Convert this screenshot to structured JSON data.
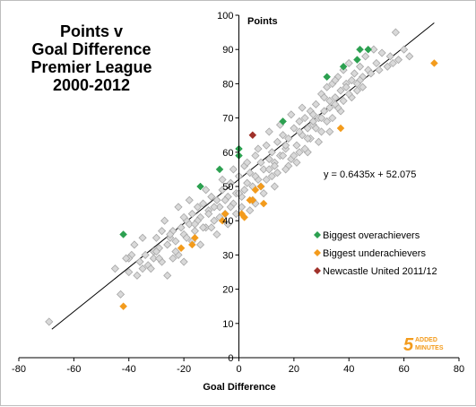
{
  "chart_data": {
    "type": "scatter",
    "title_lines": [
      "Points v",
      "Goal Difference",
      "Premier League",
      "2000-2012"
    ],
    "xlabel": "Goal Difference",
    "ylabel": "Points",
    "xlim": [
      -80,
      80
    ],
    "ylim": [
      0,
      100
    ],
    "xticks": [
      -80,
      -60,
      -40,
      -20,
      0,
      20,
      40,
      60,
      80
    ],
    "yticks": [
      0,
      10,
      20,
      30,
      40,
      50,
      60,
      70,
      80,
      90,
      100
    ],
    "grid": false,
    "trendline": {
      "slope": 0.6435,
      "intercept": 52.075,
      "x_range": [
        -68,
        71
      ],
      "label": "y = 0.6435x + 52.075"
    },
    "legend_position": "right",
    "series": [
      {
        "name": "",
        "color": "#d9d9d9",
        "points": [
          [
            -69,
            10.5
          ],
          [
            -43,
            18.5
          ],
          [
            -40,
            25
          ],
          [
            -39,
            30
          ],
          [
            -38,
            33
          ],
          [
            -40,
            29
          ],
          [
            -36,
            28
          ],
          [
            -35,
            26
          ],
          [
            -33,
            27
          ],
          [
            -31,
            29
          ],
          [
            -31,
            31
          ],
          [
            -30,
            35
          ],
          [
            -29,
            32
          ],
          [
            -28,
            28
          ],
          [
            -26,
            33
          ],
          [
            -25,
            35
          ],
          [
            -24,
            37
          ],
          [
            -23,
            34
          ],
          [
            -22,
            30
          ],
          [
            -21,
            38
          ],
          [
            -20,
            36
          ],
          [
            -19,
            40
          ],
          [
            -18,
            39
          ],
          [
            -17,
            42
          ],
          [
            -16,
            37
          ],
          [
            -15,
            44
          ],
          [
            -14,
            41
          ],
          [
            -13,
            45
          ],
          [
            -12,
            38
          ],
          [
            -11,
            43
          ],
          [
            -10,
            47
          ],
          [
            -9,
            40
          ],
          [
            -8,
            46
          ],
          [
            -7,
            44
          ],
          [
            -6,
            49
          ],
          [
            -5,
            42
          ],
          [
            -4,
            47
          ],
          [
            -3,
            51
          ],
          [
            -2,
            45
          ],
          [
            -1,
            48
          ],
          [
            0,
            53
          ],
          [
            1,
            47
          ],
          [
            2,
            56
          ],
          [
            3,
            51
          ],
          [
            4,
            54
          ],
          [
            5,
            50
          ],
          [
            6,
            59
          ],
          [
            7,
            52
          ],
          [
            8,
            57
          ],
          [
            9,
            55
          ],
          [
            10,
            62
          ],
          [
            11,
            58
          ],
          [
            12,
            60
          ],
          [
            13,
            57
          ],
          [
            14,
            63
          ],
          [
            15,
            59
          ],
          [
            16,
            65
          ],
          [
            17,
            61
          ],
          [
            18,
            64
          ],
          [
            19,
            58
          ],
          [
            20,
            67
          ],
          [
            21,
            62
          ],
          [
            22,
            69
          ],
          [
            23,
            65
          ],
          [
            24,
            70
          ],
          [
            25,
            67
          ],
          [
            26,
            72
          ],
          [
            27,
            68
          ],
          [
            28,
            74
          ],
          [
            29,
            70
          ],
          [
            30,
            77
          ],
          [
            31,
            72
          ],
          [
            32,
            79
          ],
          [
            33,
            75
          ],
          [
            34,
            80
          ],
          [
            35,
            76
          ],
          [
            36,
            82
          ],
          [
            37,
            78
          ],
          [
            38,
            84
          ],
          [
            39,
            80
          ],
          [
            40,
            86
          ],
          [
            41,
            81
          ],
          [
            42,
            83
          ],
          [
            43,
            78
          ],
          [
            44,
            85
          ],
          [
            45,
            82
          ],
          [
            46,
            88
          ],
          [
            47,
            84
          ],
          [
            49,
            90
          ],
          [
            50,
            86
          ],
          [
            52,
            89
          ],
          [
            54,
            85
          ],
          [
            55,
            88
          ],
          [
            57,
            95
          ],
          [
            58,
            87
          ],
          [
            60,
            90
          ],
          [
            62,
            88
          ],
          [
            -27,
            40
          ],
          [
            -22,
            44
          ],
          [
            -18,
            46
          ],
          [
            -12,
            49
          ],
          [
            -6,
            52
          ],
          [
            -2,
            55
          ],
          [
            3,
            57
          ],
          [
            7,
            61
          ],
          [
            11,
            66
          ],
          [
            15,
            68
          ],
          [
            19,
            71
          ],
          [
            23,
            73
          ],
          [
            27,
            71
          ],
          [
            31,
            76
          ],
          [
            35,
            81
          ],
          [
            -35,
            35
          ],
          [
            -28,
            37
          ],
          [
            -20,
            41
          ],
          [
            -15,
            40
          ],
          [
            -9,
            44
          ],
          [
            -3,
            44
          ],
          [
            2,
            49
          ],
          [
            6,
            45
          ],
          [
            10,
            52
          ],
          [
            14,
            54
          ],
          [
            18,
            56
          ],
          [
            22,
            60
          ],
          [
            26,
            64
          ],
          [
            30,
            66
          ],
          [
            34,
            70
          ],
          [
            -24,
            29
          ],
          [
            -17,
            34
          ],
          [
            -10,
            38
          ],
          [
            -4,
            39
          ],
          [
            4,
            43
          ],
          [
            9,
            48
          ],
          [
            13,
            50
          ],
          [
            17,
            55
          ],
          [
            21,
            57
          ],
          [
            25,
            60
          ],
          [
            29,
            63
          ],
          [
            33,
            66
          ],
          [
            37,
            72
          ],
          [
            41,
            76
          ],
          [
            45,
            79
          ],
          [
            -32,
            26
          ],
          [
            -26,
            24
          ],
          [
            -20,
            28
          ],
          [
            -14,
            33
          ],
          [
            -8,
            36
          ],
          [
            -1,
            42
          ],
          [
            5,
            46
          ],
          [
            12,
            53
          ],
          [
            16,
            59
          ],
          [
            24,
            61
          ],
          [
            28,
            67
          ],
          [
            32,
            69
          ],
          [
            36,
            73
          ],
          [
            40,
            77
          ],
          [
            44,
            81
          ],
          [
            -37,
            24
          ],
          [
            -30,
            31
          ],
          [
            -25,
            36
          ],
          [
            -19,
            35
          ],
          [
            -13,
            38
          ],
          [
            -7,
            41
          ],
          [
            1,
            44
          ],
          [
            8,
            50
          ],
          [
            13,
            56
          ],
          [
            20,
            59
          ],
          [
            25,
            64
          ],
          [
            30,
            70
          ],
          [
            35,
            74
          ],
          [
            39,
            79
          ],
          [
            48,
            83
          ],
          [
            -45,
            26
          ],
          [
            -41,
            29
          ],
          [
            -34,
            30
          ],
          [
            -29,
            29
          ],
          [
            -23,
            31
          ],
          [
            -16,
            39
          ],
          [
            -11,
            42
          ],
          [
            -5,
            46
          ],
          [
            0,
            48
          ],
          [
            6,
            53
          ],
          [
            11,
            55
          ],
          [
            17,
            62
          ],
          [
            22,
            66
          ],
          [
            27,
            69
          ],
          [
            33,
            73
          ],
          [
            38,
            75
          ],
          [
            43,
            80
          ],
          [
            51,
            84
          ],
          [
            56,
            86
          ]
        ]
      },
      {
        "name": "Biggest overachievers",
        "color": "#2ca050",
        "points": [
          [
            -42,
            36
          ],
          [
            -7,
            55
          ],
          [
            -14,
            50
          ],
          [
            0,
            61
          ],
          [
            0,
            59
          ],
          [
            16,
            69
          ],
          [
            32,
            82
          ],
          [
            38,
            85
          ],
          [
            43,
            87
          ],
          [
            44,
            90
          ],
          [
            47,
            90
          ]
        ]
      },
      {
        "name": "Biggest underachievers",
        "color": "#f39b1c",
        "points": [
          [
            -42,
            15
          ],
          [
            -21,
            32
          ],
          [
            -17,
            33
          ],
          [
            -16,
            35
          ],
          [
            -6,
            40
          ],
          [
            -5,
            42
          ],
          [
            1,
            42
          ],
          [
            2,
            41
          ],
          [
            4,
            46
          ],
          [
            5,
            46
          ],
          [
            6,
            49
          ],
          [
            8,
            50
          ],
          [
            9,
            45
          ],
          [
            37,
            67
          ],
          [
            71,
            86
          ]
        ]
      },
      {
        "name": "Newcastle United 2011/12",
        "color": "#a0312a",
        "points": [
          [
            5,
            65
          ]
        ]
      }
    ]
  },
  "logo": {
    "number": "5",
    "line1": "ADDED",
    "line2": "MINUTES"
  }
}
